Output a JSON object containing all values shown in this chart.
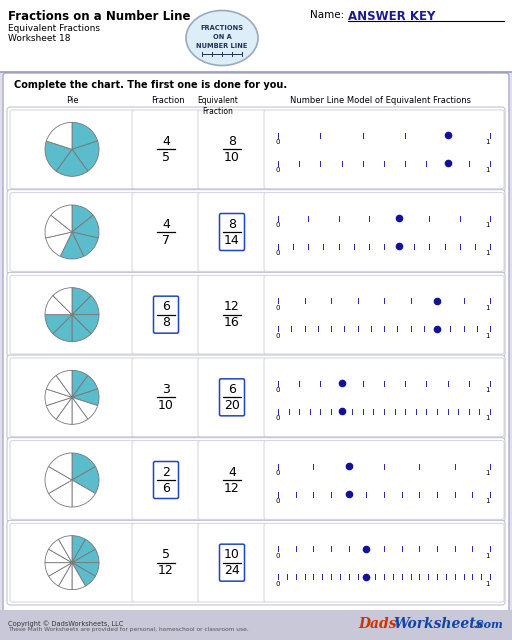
{
  "title": "Fractions on a Number Line",
  "subtitle1": "Equivalent Fractions",
  "subtitle2": "Worksheet 18",
  "name_label": "Name:",
  "answer_key": "ANSWER KEY",
  "badge_lines": [
    "FRACTIONS",
    "ON A",
    "NUMBER LINE"
  ],
  "instruction": "Complete the chart. The first one is done for you.",
  "rows": [
    {
      "pie_shaded": 4,
      "pie_total": 5,
      "frac_num": "4",
      "frac_den": "5",
      "frac_boxed": false,
      "eq_num": "8",
      "eq_den": "10",
      "eq_boxed": false,
      "nl1_ticks": 5,
      "nl1_dot": 0.8,
      "nl2_ticks": 10,
      "nl2_dot": 0.8
    },
    {
      "pie_shaded": 4,
      "pie_total": 7,
      "frac_num": "4",
      "frac_den": "7",
      "frac_boxed": false,
      "eq_num": "8",
      "eq_den": "14",
      "eq_boxed": true,
      "nl1_ticks": 7,
      "nl1_dot": 0.5714,
      "nl2_ticks": 14,
      "nl2_dot": 0.5714
    },
    {
      "pie_shaded": 6,
      "pie_total": 8,
      "frac_num": "6",
      "frac_den": "8",
      "frac_boxed": true,
      "eq_num": "12",
      "eq_den": "16",
      "eq_boxed": false,
      "nl1_ticks": 8,
      "nl1_dot": 0.75,
      "nl2_ticks": 16,
      "nl2_dot": 0.75
    },
    {
      "pie_shaded": 3,
      "pie_total": 10,
      "frac_num": "3",
      "frac_den": "10",
      "frac_boxed": false,
      "eq_num": "6",
      "eq_den": "20",
      "eq_boxed": true,
      "nl1_ticks": 10,
      "nl1_dot": 0.3,
      "nl2_ticks": 20,
      "nl2_dot": 0.3
    },
    {
      "pie_shaded": 2,
      "pie_total": 6,
      "frac_num": "2",
      "frac_den": "6",
      "frac_boxed": true,
      "eq_num": "4",
      "eq_den": "12",
      "eq_boxed": false,
      "nl1_ticks": 6,
      "nl1_dot": 0.3333,
      "nl2_ticks": 12,
      "nl2_dot": 0.3333
    },
    {
      "pie_shaded": 5,
      "pie_total": 12,
      "frac_num": "5",
      "frac_den": "12",
      "frac_boxed": false,
      "eq_num": "10",
      "eq_den": "24",
      "eq_boxed": true,
      "nl1_ticks": 12,
      "nl1_dot": 0.4167,
      "nl2_ticks": 24,
      "nl2_dot": 0.4167
    }
  ],
  "bg_color": "#e0e0ec",
  "teal_color": "#5bbccc",
  "dark_blue": "#1a1a99",
  "nl_color": "#2222aa",
  "footer_bg": "#c8c8d8"
}
